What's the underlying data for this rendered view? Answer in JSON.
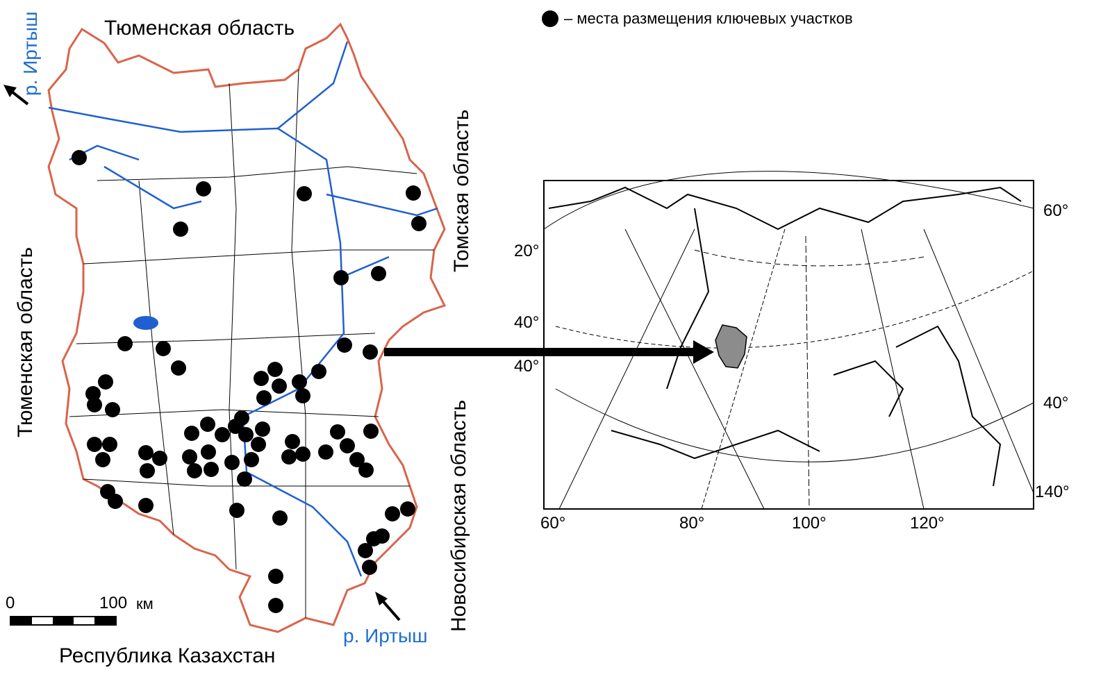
{
  "legend": {
    "marker_icon": "black-dot",
    "text": "– места размещения ключевых участков"
  },
  "region_labels": {
    "north": "Тюменская область",
    "west": "Тюменская область",
    "east_top": "Томская область",
    "east_bottom": "Новосибирская область",
    "south": "Республика Казахстан"
  },
  "river_labels": {
    "north": "р. Иртыш",
    "south": "р. Иртыш"
  },
  "scale_bar": {
    "zero": "0",
    "end": "100",
    "unit": "км"
  },
  "inset": {
    "lat_labels_left": [
      "20°",
      "40°",
      "40°"
    ],
    "lat_labels_right": [
      "60°",
      "40°",
      "140°"
    ],
    "lon_labels_bottom": [
      "60°",
      "80°",
      "100°",
      "120°"
    ]
  },
  "colors": {
    "river": "#1f5fcf",
    "border": "#d9644a",
    "dot": "#000000",
    "highlight": "#8c8c8c"
  }
}
